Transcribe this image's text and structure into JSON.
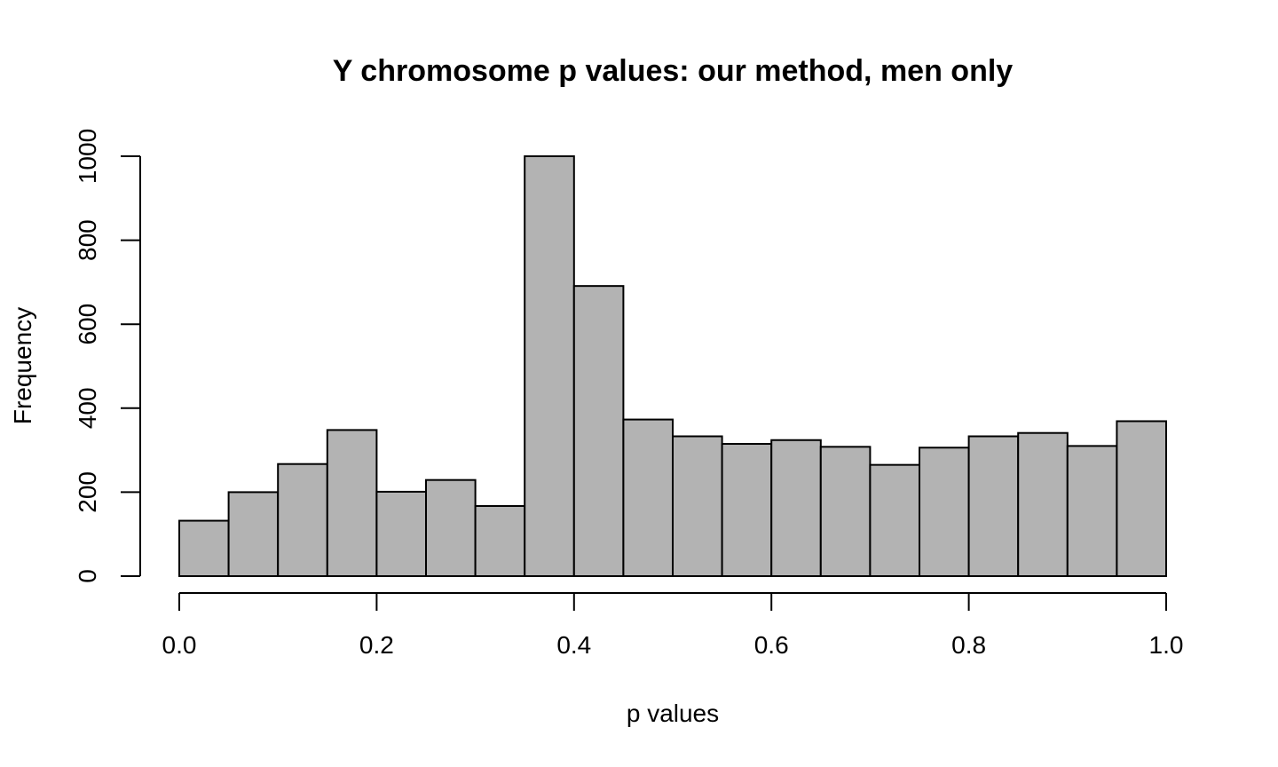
{
  "chart_data": {
    "type": "bar",
    "title": "Y chromosome p values: our method, men only",
    "xlabel": "p values",
    "ylabel": "Frequency",
    "bin_edges": [
      0.0,
      0.05,
      0.1,
      0.15,
      0.2,
      0.25,
      0.3,
      0.35,
      0.4,
      0.45,
      0.5,
      0.55,
      0.6,
      0.65,
      0.7,
      0.75,
      0.8,
      0.85,
      0.9,
      0.95,
      1.0
    ],
    "values": [
      132,
      200,
      267,
      348,
      201,
      229,
      167,
      1000,
      691,
      373,
      333,
      315,
      324,
      308,
      265,
      306,
      333,
      341,
      310,
      369
    ],
    "xlim": [
      0.0,
      1.0
    ],
    "ylim": [
      0,
      1000
    ],
    "x_ticks": [
      "0.0",
      "0.2",
      "0.4",
      "0.6",
      "0.8",
      "1.0"
    ],
    "y_ticks": [
      "0",
      "200",
      "400",
      "600",
      "800",
      "1000"
    ],
    "bar_color": "#b3b3b3",
    "edge_color": "#000000",
    "grid": false
  }
}
